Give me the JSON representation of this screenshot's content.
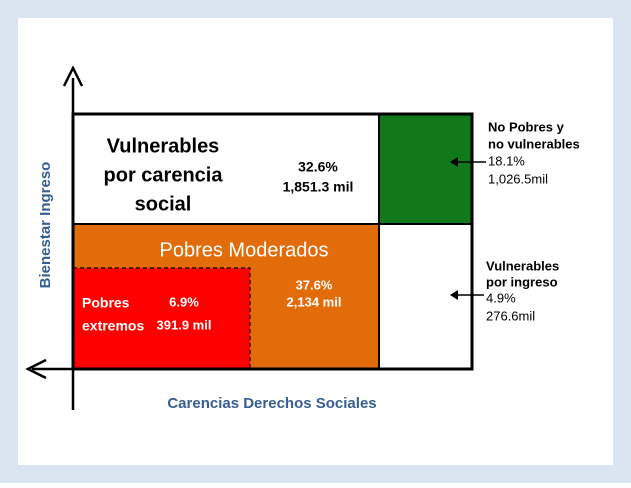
{
  "cells": {
    "vulnerables_carencia": {
      "label": [
        "Vulnerables",
        "por carencia",
        "social"
      ],
      "percent": "32.6%",
      "amount": "1,851.3 mil"
    },
    "pobres_moderados": {
      "label": "Pobres Moderados",
      "percent": "37.6%",
      "amount": "2,134 mil"
    },
    "pobres_extremos": {
      "label": [
        "Pobres",
        "extremos"
      ],
      "percent": "6.9%",
      "amount": "391.9 mil"
    }
  },
  "callouts": {
    "no_pobres": {
      "label": [
        "No Pobres y",
        "no vulnerables"
      ],
      "percent": "18.1%",
      "amount": "1,026.5mil"
    },
    "vulnerables_ingreso": {
      "label": [
        "Vulnerables",
        "por ingreso"
      ],
      "percent": "4.9%",
      "amount": "276.6mil"
    }
  },
  "axes": {
    "y_label": "Bienestar Ingreso",
    "x_label": "Carencias Derechos Sociales"
  }
}
